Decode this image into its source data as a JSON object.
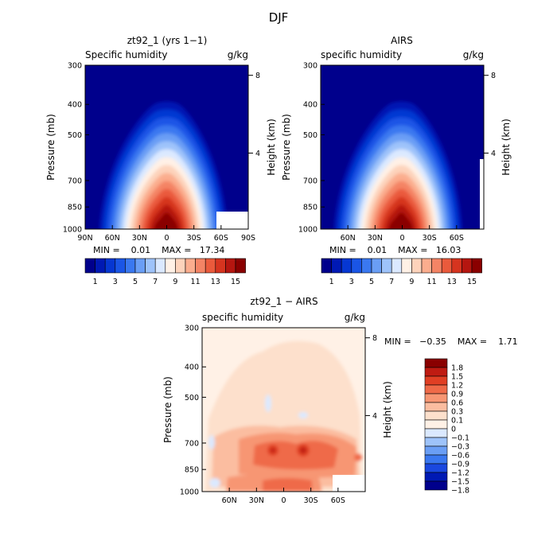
{
  "figure_title": "DJF",
  "colors": {
    "humidity_levels": [
      "#00008c",
      "#0019b4",
      "#0637d2",
      "#1a55e6",
      "#3a78f0",
      "#6a9ef5",
      "#9ec3fa",
      "#dbe9ff",
      "#fff1e6",
      "#fdd3bb",
      "#fbad8e",
      "#f48465",
      "#ea5a3c",
      "#d6341f",
      "#b51610",
      "#8a0000"
    ],
    "anomaly_levels": [
      "#00008c",
      "#0019b4",
      "#1a48e0",
      "#3a78f0",
      "#6a9ef5",
      "#9ec3fa",
      "#dbe9ff",
      "#fff1e6",
      "#fde0cc",
      "#fbbda0",
      "#f79673",
      "#ef6a48",
      "#e03f24",
      "#bf1b12",
      "#8a0000"
    ]
  },
  "chart_data": [
    {
      "type": "heatmap",
      "title": "zt92_1 (yrs 1−1)",
      "subtitle_left": "Specific humidity",
      "units": "g/kg",
      "ylabel": "Pressure (mb)",
      "ylabel_right": "Height (km)",
      "x_ticks": [
        "90N",
        "60N",
        "30N",
        "0",
        "30S",
        "60S",
        "90S"
      ],
      "y_ticks": [
        "300",
        "400",
        "500",
        "700",
        "850",
        "1000"
      ],
      "y_right_ticks": [
        "8",
        "4"
      ],
      "stats": "MIN =    0.01    MAX =   17.34",
      "colorbar_labels": [
        "1",
        "3",
        "5",
        "7",
        "9",
        "11",
        "13",
        "15"
      ],
      "peak_value": 17.34
    },
    {
      "type": "heatmap",
      "title": "AIRS",
      "subtitle_left": "specific humidity",
      "units": "g/kg",
      "ylabel": "Pressure (mb)",
      "ylabel_right": "Height (km)",
      "x_ticks": [
        "60N",
        "30N",
        "0",
        "30S",
        "60S"
      ],
      "y_ticks": [
        "300",
        "400",
        "500",
        "700",
        "850",
        "1000"
      ],
      "y_right_ticks": [
        "8",
        "4"
      ],
      "stats": "MIN =    0.01    MAX =   16.03",
      "colorbar_labels": [
        "1",
        "3",
        "5",
        "7",
        "9",
        "11",
        "13",
        "15"
      ],
      "peak_value": 16.03
    },
    {
      "type": "heatmap",
      "title": "zt92_1 − AIRS",
      "subtitle_left": "specific humidity",
      "units": "g/kg",
      "ylabel": "Pressure (mb)",
      "ylabel_right": "Height (km)",
      "x_ticks": [
        "60N",
        "30N",
        "0",
        "30S",
        "60S"
      ],
      "y_ticks": [
        "300",
        "400",
        "500",
        "700",
        "850",
        "1000"
      ],
      "y_right_ticks": [
        "8",
        "4"
      ],
      "stats": "MIN =   −0.35    MAX =    1.71",
      "colorbar_labels": [
        "1.8",
        "1.5",
        "1.2",
        "0.9",
        "0.6",
        "0.3",
        "0.1",
        "0",
        "−0.1",
        "−0.3",
        "−0.6",
        "−0.9",
        "−1.2",
        "−1.5",
        "−1.8"
      ]
    }
  ]
}
